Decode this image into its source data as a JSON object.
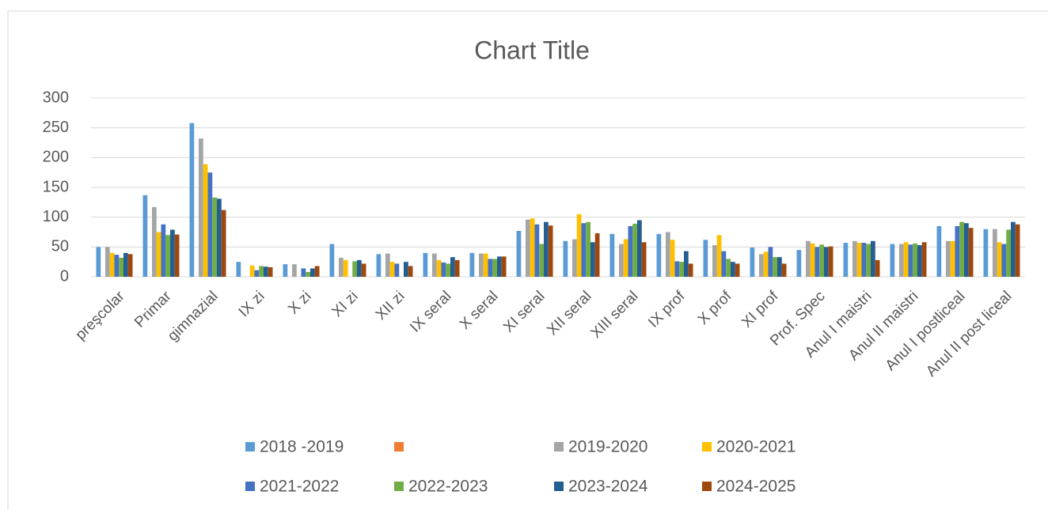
{
  "chart_data": {
    "type": "bar",
    "title": "Chart Title",
    "categories": [
      "preşcolar",
      "Primar",
      "gimnazial",
      "IX zi",
      "X zi",
      "XI zi",
      "XII zi",
      "IX seral",
      "X seral",
      "XI seral",
      "XII seral",
      "XIII seral",
      "IX  prof",
      "X prof",
      "XI prof",
      "Prof. Spec",
      "Anul I maistri",
      "Anul II maistri",
      "Anul I postliceal",
      "Anul II post liceal"
    ],
    "series": [
      {
        "name": "2018 -2019",
        "color": "#5b9bd5",
        "values": [
          50,
          137,
          258,
          25,
          21,
          55,
          38,
          40,
          40,
          77,
          60,
          72,
          72,
          62,
          49,
          45,
          57,
          55,
          85,
          80
        ]
      },
      {
        "color": "#ed7d31",
        "values": [
          null,
          null,
          null,
          null,
          null,
          null,
          null,
          null,
          null,
          null,
          null,
          null,
          null,
          null,
          null,
          null,
          null,
          null,
          null,
          null
        ]
      },
      {
        "name": "2019-2020",
        "color": "#a5a5a5",
        "values": [
          50,
          117,
          232,
          null,
          21,
          32,
          39,
          39,
          39,
          96,
          63,
          55,
          75,
          53,
          38,
          60,
          60,
          55,
          60,
          80
        ]
      },
      {
        "name": "2020-2021",
        "color": "#ffc000",
        "values": [
          40,
          75,
          189,
          19,
          null,
          28,
          25,
          28,
          39,
          98,
          105,
          63,
          62,
          70,
          42,
          56,
          57,
          58,
          60,
          58
        ]
      },
      {
        "name": "2021-2022",
        "color": "#4472c4",
        "values": [
          37,
          88,
          175,
          11,
          14,
          null,
          22,
          24,
          30,
          88,
          90,
          85,
          26,
          43,
          50,
          50,
          57,
          54,
          85,
          55
        ]
      },
      {
        "name": "2022-2023",
        "color": "#70ad47",
        "values": [
          32,
          70,
          133,
          18,
          8,
          26,
          null,
          22,
          30,
          55,
          92,
          89,
          25,
          30,
          33,
          54,
          55,
          56,
          92,
          79
        ]
      },
      {
        "name": "2023-2024",
        "color": "#255e91",
        "values": [
          40,
          79,
          131,
          17,
          14,
          28,
          25,
          33,
          34,
          92,
          58,
          95,
          43,
          25,
          33,
          50,
          60,
          53,
          90,
          92
        ]
      },
      {
        "name": "2024-2025",
        "color": "#9e480e",
        "values": [
          38,
          71,
          112,
          16,
          18,
          22,
          18,
          28,
          34,
          86,
          73,
          58,
          22,
          22,
          22,
          51,
          28,
          58,
          82,
          88
        ]
      }
    ],
    "ylim": [
      0,
      300
    ],
    "yticks": [
      0,
      50,
      100,
      150,
      200,
      250,
      300
    ],
    "grid": true,
    "legend": "bottom"
  }
}
